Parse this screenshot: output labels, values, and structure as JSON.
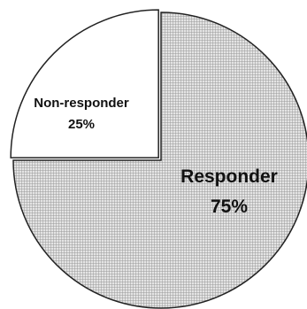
{
  "chart_data": {
    "type": "pie",
    "slices": [
      {
        "label": "Responder",
        "value": 75,
        "value_label": "75%",
        "exploded": false,
        "fill": "hatched-gray"
      },
      {
        "label": "Non-responder",
        "value": 25,
        "value_label": "25%",
        "exploded": true,
        "fill": "white"
      }
    ],
    "start_angle": "12 o'clock",
    "direction": "clockwise",
    "legend": "none",
    "colors": {
      "outline": "#222222",
      "hatch": "#9a9a9a",
      "background": "#ffffff"
    }
  }
}
